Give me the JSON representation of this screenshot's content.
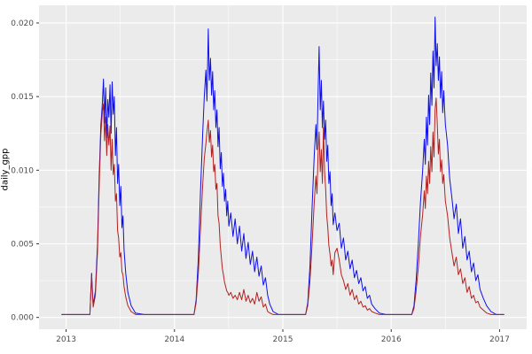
{
  "chart_data": {
    "type": "line",
    "title": "",
    "xlabel": "",
    "ylabel": "daily_gpp",
    "theme": "ggplot-grey",
    "panel_bg": "#EBEBEB",
    "grid_color": "#FFFFFF",
    "tick_mark_color": "#333333",
    "tick_text_color": "#4D4D4D",
    "legend": "none",
    "xlim": [
      2012.75,
      2017.25
    ],
    "ylim": [
      -0.0008,
      0.0212
    ],
    "x_ticks": [
      2013,
      2014,
      2015,
      2016,
      2017
    ],
    "x_tick_labels": [
      "2013",
      "2014",
      "2015",
      "2016",
      "2017"
    ],
    "x_minor": [
      2013.5,
      2014.5,
      2015.5,
      2016.5
    ],
    "y_ticks": [
      0,
      0.005,
      0.01,
      0.015,
      0.02
    ],
    "y_tick_labels": [
      "0.000",
      "0.005",
      "0.010",
      "0.015",
      "0.020"
    ],
    "y_minor": [
      0.0025,
      0.0075,
      0.0125,
      0.0175
    ],
    "series": [
      {
        "name": "series-blue",
        "color": "#0F0FE8"
      },
      {
        "name": "series-darkred",
        "color": "#B22222"
      }
    ],
    "points_format": [
      "x_decimal_year",
      "blue_value",
      "red_value"
    ],
    "points": [
      [
        2012.96,
        0.0002,
        0.0002
      ],
      [
        2013.08,
        0.0002,
        0.0002
      ],
      [
        2013.18,
        0.0002,
        0.0002
      ],
      [
        2013.22,
        0.0002,
        0.0002
      ],
      [
        2013.235,
        0.003,
        0.0028
      ],
      [
        2013.25,
        0.0008,
        0.0007
      ],
      [
        2013.27,
        0.0018,
        0.0015
      ],
      [
        2013.29,
        0.005,
        0.0045
      ],
      [
        2013.305,
        0.0095,
        0.0088
      ],
      [
        2013.32,
        0.013,
        0.0124
      ],
      [
        2013.335,
        0.0146,
        0.014
      ],
      [
        2013.345,
        0.0162,
        0.0145
      ],
      [
        2013.355,
        0.0132,
        0.012
      ],
      [
        2013.365,
        0.0156,
        0.0136
      ],
      [
        2013.375,
        0.0122,
        0.011
      ],
      [
        2013.385,
        0.0148,
        0.0131
      ],
      [
        2013.395,
        0.0136,
        0.0117
      ],
      [
        2013.405,
        0.0158,
        0.013
      ],
      [
        2013.415,
        0.0125,
        0.01
      ],
      [
        2013.425,
        0.016,
        0.0121
      ],
      [
        2013.435,
        0.0138,
        0.0097
      ],
      [
        2013.445,
        0.015,
        0.0104
      ],
      [
        2013.455,
        0.011,
        0.0079
      ],
      [
        2013.465,
        0.0129,
        0.0084
      ],
      [
        2013.475,
        0.0091,
        0.0059
      ],
      [
        2013.485,
        0.0104,
        0.0054
      ],
      [
        2013.495,
        0.0076,
        0.0041
      ],
      [
        2013.505,
        0.0089,
        0.0044
      ],
      [
        2013.515,
        0.0061,
        0.0031
      ],
      [
        2013.525,
        0.0069,
        0.0029
      ],
      [
        2013.535,
        0.0046,
        0.0021
      ],
      [
        2013.55,
        0.003,
        0.0014
      ],
      [
        2013.57,
        0.0017,
        0.0008
      ],
      [
        2013.6,
        0.0008,
        0.0004
      ],
      [
        2013.64,
        0.0003,
        0.0002
      ],
      [
        2013.72,
        0.0002,
        0.0002
      ],
      [
        2013.85,
        0.0002,
        0.0002
      ],
      [
        2014.0,
        0.0002,
        0.0002
      ],
      [
        2014.12,
        0.0002,
        0.0002
      ],
      [
        2014.18,
        0.0002,
        0.0002
      ],
      [
        2014.2,
        0.0012,
        0.001
      ],
      [
        2014.22,
        0.004,
        0.003
      ],
      [
        2014.24,
        0.0085,
        0.006
      ],
      [
        2014.26,
        0.0125,
        0.009
      ],
      [
        2014.275,
        0.015,
        0.0108
      ],
      [
        2014.29,
        0.0168,
        0.0118
      ],
      [
        2014.3,
        0.0147,
        0.0126
      ],
      [
        2014.312,
        0.0196,
        0.0134
      ],
      [
        2014.322,
        0.0161,
        0.0119
      ],
      [
        2014.332,
        0.0176,
        0.0127
      ],
      [
        2014.342,
        0.0151,
        0.0109
      ],
      [
        2014.352,
        0.0167,
        0.0117
      ],
      [
        2014.362,
        0.0141,
        0.0099
      ],
      [
        2014.372,
        0.0154,
        0.0104
      ],
      [
        2014.382,
        0.0129,
        0.0087
      ],
      [
        2014.392,
        0.0141,
        0.0091
      ],
      [
        2014.402,
        0.0116,
        0.0069
      ],
      [
        2014.412,
        0.0129,
        0.0064
      ],
      [
        2014.422,
        0.0101,
        0.0049
      ],
      [
        2014.432,
        0.0112,
        0.0041
      ],
      [
        2014.442,
        0.0089,
        0.0033
      ],
      [
        2014.452,
        0.0098,
        0.0029
      ],
      [
        2014.462,
        0.0079,
        0.0024
      ],
      [
        2014.472,
        0.0087,
        0.0021
      ],
      [
        2014.482,
        0.0069,
        0.0018
      ],
      [
        2014.492,
        0.0079,
        0.0017
      ],
      [
        2014.502,
        0.0062,
        0.0015
      ],
      [
        2014.52,
        0.0071,
        0.0017
      ],
      [
        2014.54,
        0.0055,
        0.0013
      ],
      [
        2014.56,
        0.0067,
        0.0015
      ],
      [
        2014.58,
        0.005,
        0.0012
      ],
      [
        2014.6,
        0.0062,
        0.0017
      ],
      [
        2014.62,
        0.0045,
        0.0012
      ],
      [
        2014.64,
        0.0057,
        0.0019
      ],
      [
        2014.66,
        0.004,
        0.0011
      ],
      [
        2014.68,
        0.0051,
        0.0015
      ],
      [
        2014.7,
        0.0036,
        0.001
      ],
      [
        2014.72,
        0.0045,
        0.0013
      ],
      [
        2014.74,
        0.0031,
        0.0009
      ],
      [
        2014.76,
        0.0041,
        0.0017
      ],
      [
        2014.78,
        0.0028,
        0.0011
      ],
      [
        2014.8,
        0.0035,
        0.0014
      ],
      [
        2014.82,
        0.0022,
        0.0007
      ],
      [
        2014.84,
        0.0027,
        0.0009
      ],
      [
        2014.86,
        0.0015,
        0.0004
      ],
      [
        2014.88,
        0.0009,
        0.0003
      ],
      [
        2014.91,
        0.0004,
        0.0002
      ],
      [
        2014.96,
        0.0002,
        0.0002
      ],
      [
        2015.06,
        0.0002,
        0.0002
      ],
      [
        2015.16,
        0.0002,
        0.0002
      ],
      [
        2015.21,
        0.0002,
        0.0002
      ],
      [
        2015.23,
        0.001,
        0.0008
      ],
      [
        2015.25,
        0.0035,
        0.0025
      ],
      [
        2015.27,
        0.0075,
        0.005
      ],
      [
        2015.29,
        0.011,
        0.0078
      ],
      [
        2015.305,
        0.0131,
        0.0096
      ],
      [
        2015.315,
        0.0114,
        0.0084
      ],
      [
        2015.325,
        0.0151,
        0.0111
      ],
      [
        2015.335,
        0.0184,
        0.0126
      ],
      [
        2015.345,
        0.0141,
        0.0099
      ],
      [
        2015.355,
        0.0161,
        0.0114
      ],
      [
        2015.365,
        0.0129,
        0.0091
      ],
      [
        2015.375,
        0.0147,
        0.0129
      ],
      [
        2015.385,
        0.0121,
        0.0099
      ],
      [
        2015.395,
        0.0134,
        0.0087
      ],
      [
        2015.405,
        0.0106,
        0.0069
      ],
      [
        2015.415,
        0.0117,
        0.0061
      ],
      [
        2015.425,
        0.0091,
        0.0049
      ],
      [
        2015.435,
        0.0099,
        0.0043
      ],
      [
        2015.445,
        0.0076,
        0.0035
      ],
      [
        2015.455,
        0.0084,
        0.0039
      ],
      [
        2015.465,
        0.0063,
        0.0029
      ],
      [
        2015.48,
        0.0071,
        0.0044
      ],
      [
        2015.5,
        0.0059,
        0.0047
      ],
      [
        2015.52,
        0.0064,
        0.0039
      ],
      [
        2015.54,
        0.0047,
        0.0029
      ],
      [
        2015.56,
        0.0054,
        0.0025
      ],
      [
        2015.58,
        0.0039,
        0.0019
      ],
      [
        2015.6,
        0.0045,
        0.0023
      ],
      [
        2015.62,
        0.0033,
        0.0015
      ],
      [
        2015.64,
        0.0039,
        0.0019
      ],
      [
        2015.66,
        0.0027,
        0.0012
      ],
      [
        2015.68,
        0.0032,
        0.0015
      ],
      [
        2015.7,
        0.0023,
        0.0009
      ],
      [
        2015.72,
        0.0027,
        0.0011
      ],
      [
        2015.74,
        0.0018,
        0.0007
      ],
      [
        2015.76,
        0.0021,
        0.0008
      ],
      [
        2015.78,
        0.0013,
        0.0005
      ],
      [
        2015.8,
        0.0015,
        0.0006
      ],
      [
        2015.82,
        0.0009,
        0.0004
      ],
      [
        2015.85,
        0.0006,
        0.0003
      ],
      [
        2015.89,
        0.0003,
        0.0002
      ],
      [
        2015.95,
        0.0002,
        0.0002
      ],
      [
        2016.05,
        0.0002,
        0.0002
      ],
      [
        2016.15,
        0.0002,
        0.0002
      ],
      [
        2016.19,
        0.0002,
        0.0002
      ],
      [
        2016.21,
        0.0008,
        0.0006
      ],
      [
        2016.23,
        0.0025,
        0.0018
      ],
      [
        2016.25,
        0.005,
        0.0034
      ],
      [
        2016.27,
        0.0078,
        0.0055
      ],
      [
        2016.29,
        0.01,
        0.007
      ],
      [
        2016.305,
        0.0121,
        0.0086
      ],
      [
        2016.315,
        0.0104,
        0.0074
      ],
      [
        2016.325,
        0.0136,
        0.0096
      ],
      [
        2016.335,
        0.0117,
        0.0084
      ],
      [
        2016.345,
        0.0151,
        0.0106
      ],
      [
        2016.355,
        0.0131,
        0.0091
      ],
      [
        2016.365,
        0.0166,
        0.0116
      ],
      [
        2016.375,
        0.0144,
        0.0099
      ],
      [
        2016.385,
        0.0181,
        0.0126
      ],
      [
        2016.395,
        0.0156,
        0.0109
      ],
      [
        2016.405,
        0.0204,
        0.0141
      ],
      [
        2016.415,
        0.0171,
        0.0149
      ],
      [
        2016.425,
        0.0186,
        0.0131
      ],
      [
        2016.435,
        0.0161,
        0.0111
      ],
      [
        2016.445,
        0.0177,
        0.0121
      ],
      [
        2016.455,
        0.0149,
        0.0099
      ],
      [
        2016.465,
        0.0167,
        0.0107
      ],
      [
        2016.475,
        0.0139,
        0.0091
      ],
      [
        2016.485,
        0.0154,
        0.0097
      ],
      [
        2016.5,
        0.0131,
        0.0079
      ],
      [
        2016.52,
        0.0117,
        0.0069
      ],
      [
        2016.54,
        0.0094,
        0.0054
      ],
      [
        2016.56,
        0.0081,
        0.0044
      ],
      [
        2016.58,
        0.0067,
        0.0035
      ],
      [
        2016.6,
        0.0077,
        0.0041
      ],
      [
        2016.62,
        0.0057,
        0.0029
      ],
      [
        2016.64,
        0.0067,
        0.0033
      ],
      [
        2016.66,
        0.0047,
        0.0023
      ],
      [
        2016.68,
        0.0055,
        0.0027
      ],
      [
        2016.7,
        0.0039,
        0.0017
      ],
      [
        2016.72,
        0.0045,
        0.0021
      ],
      [
        2016.74,
        0.0031,
        0.0013
      ],
      [
        2016.76,
        0.0037,
        0.0015
      ],
      [
        2016.78,
        0.0025,
        0.001
      ],
      [
        2016.8,
        0.0029,
        0.0011
      ],
      [
        2016.82,
        0.0019,
        0.0007
      ],
      [
        2016.85,
        0.0013,
        0.0005
      ],
      [
        2016.88,
        0.0008,
        0.0003
      ],
      [
        2016.92,
        0.0004,
        0.0002
      ],
      [
        2016.97,
        0.0002,
        0.0002
      ],
      [
        2017.04,
        0.0002,
        0.0002
      ]
    ]
  }
}
